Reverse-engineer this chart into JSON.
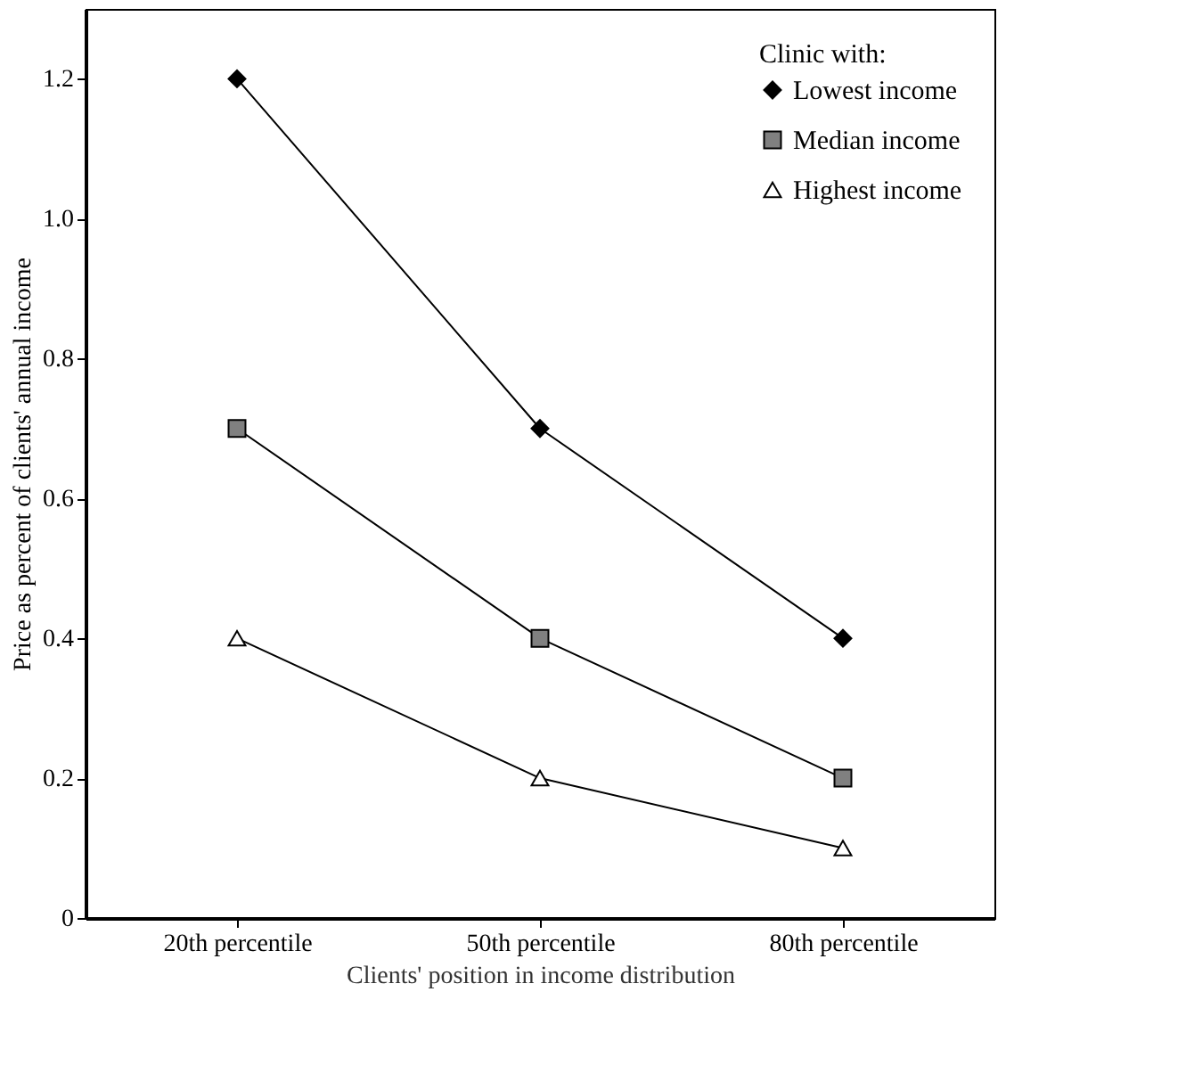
{
  "chart_data": {
    "type": "line",
    "xlabel": "Clients' position in income distribution",
    "ylabel": "Price as percent of clients' annual income",
    "legend_title": "Clinic with:",
    "legend": "top right",
    "grid": false,
    "line_style": "solid",
    "categories": [
      "20th percentile",
      "50th percentile",
      "80th percentile"
    ],
    "ylim": [
      0,
      1.3
    ],
    "yticks": [
      0,
      0.2,
      0.4,
      0.6,
      0.8,
      {
        "value": 1,
        "label": "1.0"
      },
      1.2
    ],
    "series": [
      {
        "name": "Lowest income",
        "color": "#000000",
        "marker": "diamond",
        "values": [
          1.2,
          0.7,
          0.4
        ]
      },
      {
        "name": "Median income",
        "color": "#808080",
        "marker": "square",
        "values": [
          0.7,
          0.4,
          0.2
        ]
      },
      {
        "name": "Highest income",
        "color": "#ffffff",
        "marker": "triangle",
        "values": [
          0.4,
          0.2,
          0.1
        ]
      }
    ]
  }
}
